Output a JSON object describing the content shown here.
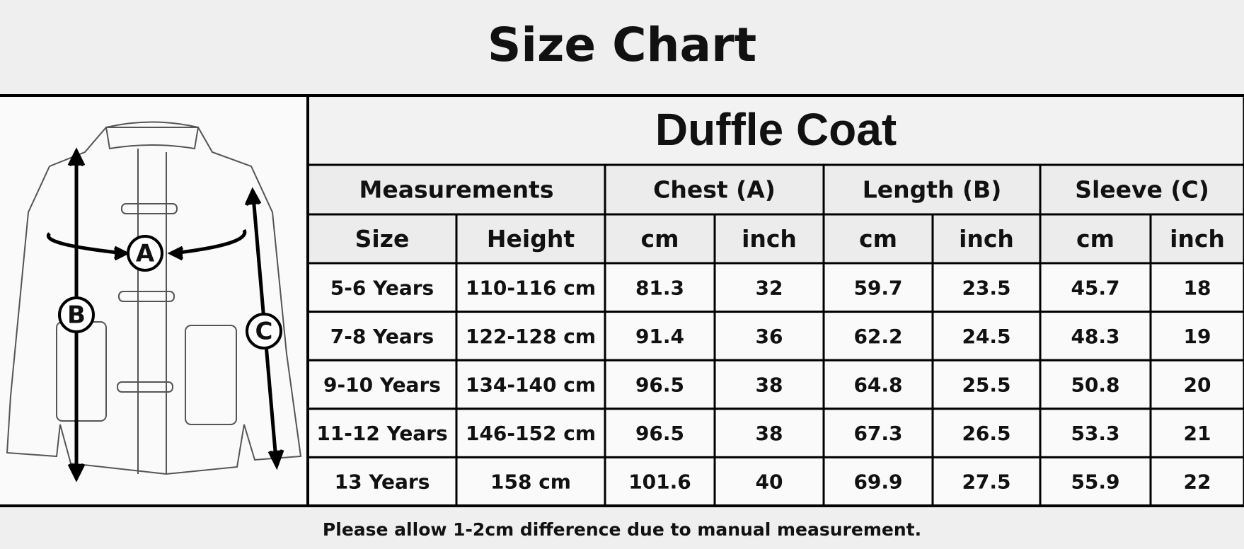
{
  "header": {
    "title": "Size Chart"
  },
  "diagram": {
    "labels": [
      "A",
      "B",
      "C"
    ]
  },
  "table": {
    "title": "Duffle Coat",
    "groups": [
      "Measurements",
      "Chest (A)",
      "Length (B)",
      "Sleeve (C)"
    ],
    "subheaders": [
      "Size",
      "Height",
      "cm",
      "inch",
      "cm",
      "inch",
      "cm",
      "inch"
    ],
    "rows": [
      [
        "5-6 Years",
        "110-116 cm",
        "81.3",
        "32",
        "59.7",
        "23.5",
        "45.7",
        "18"
      ],
      [
        "7-8 Years",
        "122-128 cm",
        "91.4",
        "36",
        "62.2",
        "24.5",
        "48.3",
        "19"
      ],
      [
        "9-10 Years",
        "134-140 cm",
        "96.5",
        "38",
        "64.8",
        "25.5",
        "50.8",
        "20"
      ],
      [
        "11-12 Years",
        "146-152 cm",
        "96.5",
        "38",
        "67.3",
        "26.5",
        "53.3",
        "21"
      ],
      [
        "13 Years",
        "158 cm",
        "101.6",
        "40",
        "69.9",
        "27.5",
        "55.9",
        "22"
      ]
    ]
  },
  "footer": {
    "note": "Please allow 1-2cm difference due to manual measurement."
  }
}
